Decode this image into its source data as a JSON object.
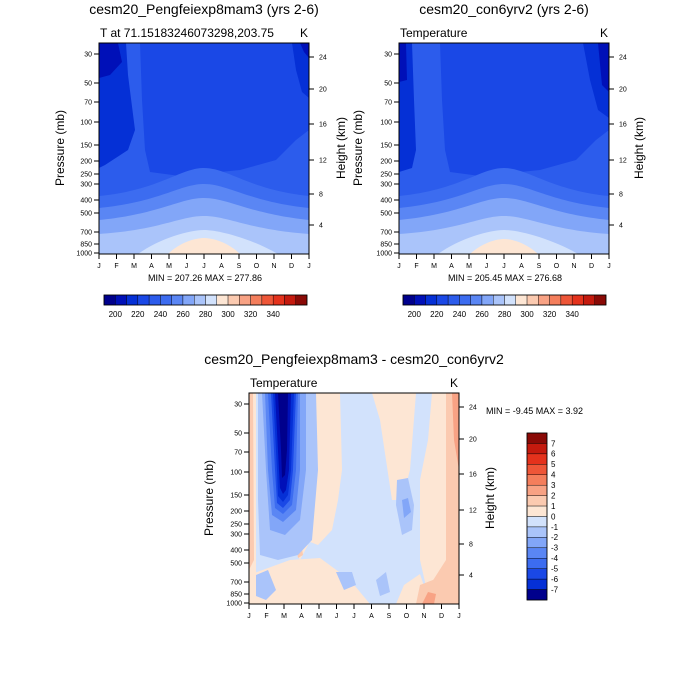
{
  "colors": {
    "blues": [
      "#00008c",
      "#0010b8",
      "#0530d6",
      "#1a48e6",
      "#2c5cec",
      "#3c6cf0",
      "#5a86f4",
      "#82a6f8",
      "#aac4fa",
      "#d2e2fc"
    ],
    "light": "#fde6d4",
    "reds": [
      "#fbcab0",
      "#f8a284",
      "#f47e5c",
      "#ee5638",
      "#e4321c",
      "#c41a0e",
      "#8a0a06"
    ]
  },
  "pressure_ticks": [
    "30",
    "50",
    "70",
    "100",
    "150",
    "200",
    "250",
    "300",
    "400",
    "500",
    "700",
    "850",
    "1000"
  ],
  "height_ticks": [
    "24",
    "20",
    "16",
    "12",
    "8",
    "4"
  ],
  "months": [
    "J",
    "F",
    "M",
    "A",
    "M",
    "J",
    "J",
    "A",
    "S",
    "O",
    "N",
    "D",
    "J"
  ],
  "axis_labels": {
    "pressure": "Pressure (mb)",
    "height": "Height (km)"
  },
  "panels": [
    {
      "title": "cesm20_Pengfeiexp8mam3 (yrs 2-6)",
      "left_label": "T at 71.15183246073298,203.75",
      "right_label": "K",
      "minmax": "MIN = 207.26 MAX = 277.86",
      "chart_data": {
        "type": "contour",
        "variable": "Temperature",
        "units": "K",
        "min": 207.26,
        "max": 277.86,
        "x_categories": [
          "J",
          "F",
          "M",
          "A",
          "M",
          "J",
          "J",
          "A",
          "S",
          "O",
          "N",
          "D",
          "J"
        ],
        "y_pressure_levels": [
          30,
          50,
          70,
          100,
          150,
          200,
          250,
          300,
          400,
          500,
          700,
          850,
          1000
        ],
        "levels": [
          200,
          210,
          220,
          230,
          240,
          250,
          260,
          270,
          280,
          290,
          300,
          310,
          320,
          330,
          340,
          350
        ]
      }
    },
    {
      "title": "cesm20_con6yrv2 (yrs 2-6)",
      "left_label": "Temperature",
      "right_label": "K",
      "minmax": "MIN = 205.45 MAX = 276.68",
      "chart_data": {
        "type": "contour",
        "variable": "Temperature",
        "units": "K",
        "min": 205.45,
        "max": 276.68,
        "x_categories": [
          "J",
          "F",
          "M",
          "A",
          "M",
          "J",
          "J",
          "A",
          "S",
          "O",
          "N",
          "D",
          "J"
        ],
        "y_pressure_levels": [
          30,
          50,
          70,
          100,
          150,
          200,
          250,
          300,
          400,
          500,
          700,
          850,
          1000
        ],
        "levels": [
          200,
          210,
          220,
          230,
          240,
          250,
          260,
          270,
          280,
          290,
          300,
          310,
          320,
          330,
          340,
          350
        ]
      }
    },
    {
      "title": "cesm20_Pengfeiexp8mam3 - cesm20_con6yrv2",
      "left_label": "Temperature",
      "right_label": "K",
      "minmax": "MIN = -9.45 MAX = 3.92",
      "chart_data": {
        "type": "contour",
        "variable": "Temperature difference",
        "units": "K",
        "min": -9.45,
        "max": 3.92,
        "x_categories": [
          "J",
          "F",
          "M",
          "A",
          "M",
          "J",
          "J",
          "A",
          "S",
          "O",
          "N",
          "D",
          "J"
        ],
        "y_pressure_levels": [
          30,
          50,
          70,
          100,
          150,
          200,
          250,
          300,
          400,
          500,
          700,
          850,
          1000
        ],
        "levels": [
          -7,
          -6,
          -5,
          -4,
          -3,
          -2,
          -1,
          0,
          1,
          2,
          3,
          4,
          5,
          6,
          7
        ]
      }
    }
  ],
  "colorbar_top": {
    "labels": [
      "200",
      "220",
      "240",
      "260",
      "280",
      "300",
      "320",
      "340"
    ],
    "swatches": [
      "#00008c",
      "#0010b8",
      "#0530d6",
      "#1a48e6",
      "#2c5cec",
      "#3c6cf0",
      "#5a86f4",
      "#82a6f8",
      "#aac4fa",
      "#d2e2fc",
      "#fde6d4",
      "#fbcab0",
      "#f8a284",
      "#f47e5c",
      "#ee5638",
      "#e4321c",
      "#c41a0e",
      "#8a0a06"
    ]
  },
  "colorbar_diff": {
    "labels": [
      "7",
      "6",
      "5",
      "4",
      "3",
      "2",
      "1",
      "0",
      "-1",
      "-2",
      "-3",
      "-4",
      "-5",
      "-6",
      "-7"
    ],
    "swatches": [
      "#8a0a06",
      "#c41a0e",
      "#e4321c",
      "#ee5638",
      "#f47e5c",
      "#f8a284",
      "#fbcab0",
      "#fde6d4",
      "#d2e2fc",
      "#aac4fa",
      "#82a6f8",
      "#5a86f4",
      "#3c6cf0",
      "#1a48e6",
      "#0530d6",
      "#00008c"
    ]
  }
}
